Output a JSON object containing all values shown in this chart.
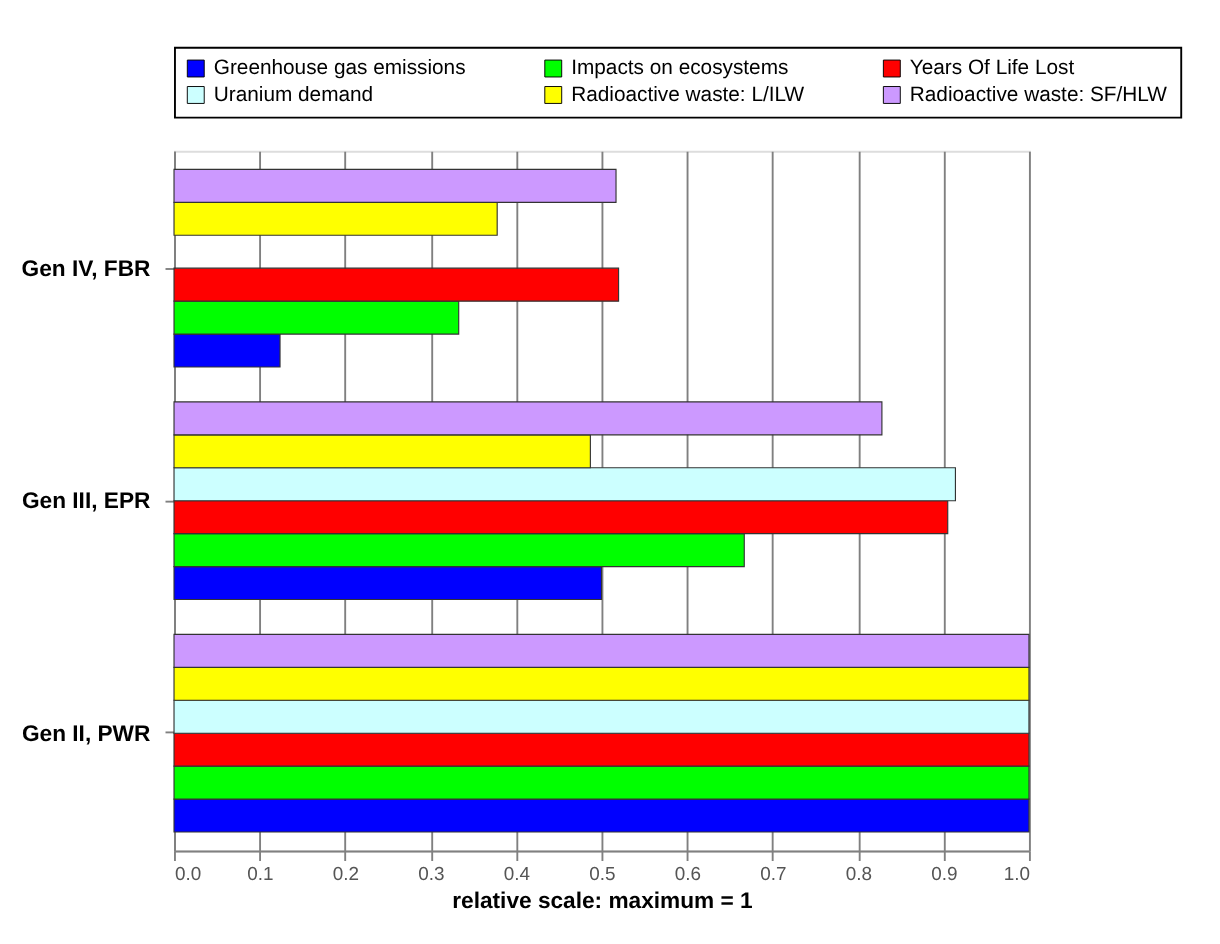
{
  "chart_data": {
    "type": "bar",
    "orientation": "horizontal",
    "xlabel": "relative scale: maximum = 1",
    "categories": [
      "Gen IV, FBR",
      "Gen III, EPR",
      "Gen II, PWR"
    ],
    "series": [
      {
        "name": "Greenhouse gas emissions",
        "color": "#0000ff",
        "values": [
          0.124,
          0.5,
          1.0
        ]
      },
      {
        "name": "Impacts on ecosystems",
        "color": "#00ff00",
        "values": [
          0.333,
          0.667,
          1.0
        ]
      },
      {
        "name": "Years Of Life Lost",
        "color": "#ff0000",
        "values": [
          0.52,
          0.905,
          1.0
        ]
      },
      {
        "name": "Uranium demand",
        "color": "#ccffff",
        "values": [
          null,
          0.914,
          1.0
        ]
      },
      {
        "name": "Radioactive waste: L/ILW",
        "color": "#ffff00",
        "values": [
          0.378,
          0.487,
          1.0
        ]
      },
      {
        "name": "Radioactive waste: SF/HLW",
        "color": "#cc99ff",
        "values": [
          0.517,
          0.828,
          1.0
        ]
      }
    ],
    "xlim": [
      0,
      1
    ],
    "xticks": [
      {
        "value": 0,
        "label": "0.0"
      },
      {
        "value": 0.1,
        "label": "0.1"
      },
      {
        "value": 0.2,
        "label": "0.2"
      },
      {
        "value": 0.3,
        "label": "0.3"
      },
      {
        "value": 0.4,
        "label": "0.4"
      },
      {
        "value": 0.5,
        "label": "0.5"
      },
      {
        "value": 0.6,
        "label": "0.6"
      },
      {
        "value": 0.7,
        "label": "0.7"
      },
      {
        "value": 0.8,
        "label": "0.8"
      },
      {
        "value": 0.9,
        "label": "0.9"
      },
      {
        "value": 1,
        "label": "1.0"
      }
    ],
    "grid": "x",
    "legend": "top"
  }
}
